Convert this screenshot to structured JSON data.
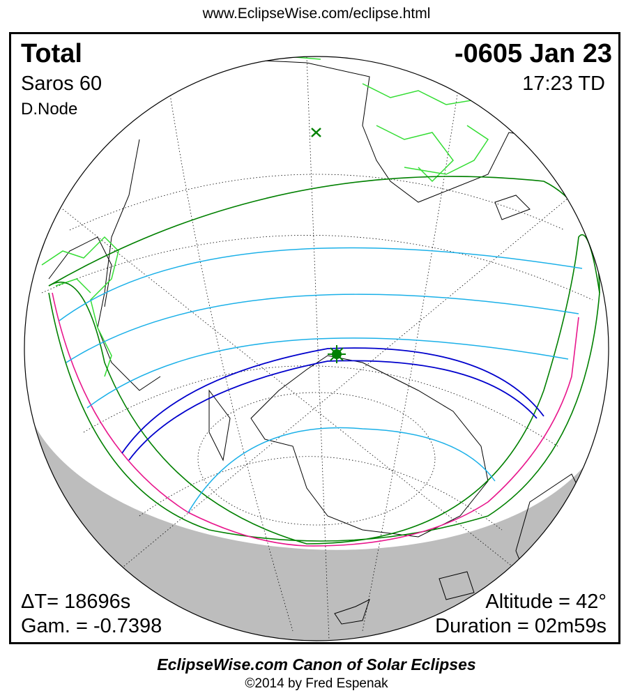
{
  "header": {
    "url": "www.EclipseWise.com/eclipse.html"
  },
  "eclipse": {
    "type": "Total",
    "date": "-0605 Jan 23",
    "saros": "Saros  60",
    "time": "17:23 TD",
    "node": "D.Node",
    "delta_t": "ΔT=  18696s",
    "gamma": "Gam. = -0.7398",
    "altitude": "Altitude = 42°",
    "duration": "Duration = 02m59s"
  },
  "map": {
    "projection": "orthographic",
    "colors": {
      "coastline": "#000000",
      "borders": "#33dd33",
      "penumbra_limits": "#008000",
      "partial_isolines": "#1ab0e8",
      "umbral_path": "#0000cc",
      "rise_set_curves": "#e8168c",
      "night": "#bdbdbd",
      "greatest_eclipse_marker": "#008000"
    },
    "markers": [
      "greatest-eclipse-star",
      "sub-solar-x"
    ]
  },
  "footer": {
    "title": "EclipseWise.com Canon of Solar Eclipses",
    "copyright": "©2014 by Fred Espenak"
  }
}
